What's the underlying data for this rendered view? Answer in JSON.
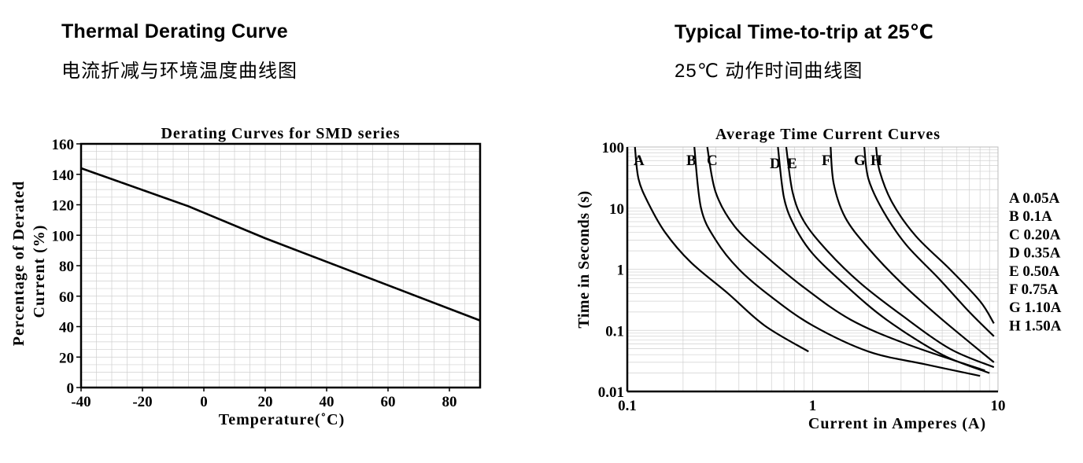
{
  "headers": {
    "left_title": "Thermal Derating Curve",
    "left_subtitle": "电流折减与环境温度曲线图",
    "right_title": "Typical Time-to-trip at 25℃",
    "right_subtitle": "25℃ 动作时间曲线图"
  },
  "chart_data": [
    {
      "type": "line",
      "title": "Derating Curves for SMD series",
      "xlabel": "Temperature(˚C)",
      "ylabel_line1": "Percentage of Derated",
      "ylabel_line2": "Current (%)",
      "xlim": [
        -40,
        90
      ],
      "ylim": [
        0,
        160
      ],
      "x_ticks": [
        -40,
        -20,
        0,
        20,
        40,
        60,
        80
      ],
      "y_ticks": [
        0,
        20,
        40,
        60,
        80,
        100,
        120,
        140,
        160
      ],
      "grid": true,
      "series": [
        {
          "x": [
            -40,
            -5,
            20,
            90
          ],
          "values": [
            144,
            119,
            98,
            44
          ]
        }
      ]
    },
    {
      "type": "line",
      "title": "Average Time Current Curves",
      "xlabel": "Current in Amperes (A)",
      "ylabel": "Time in Seconds (s)",
      "x_scale": "log",
      "y_scale": "log",
      "xlim": [
        0.1,
        10
      ],
      "ylim": [
        0.01,
        100
      ],
      "x_ticks": [
        "0.1",
        "1",
        "10"
      ],
      "y_ticks": [
        "0.01",
        "0.1",
        "1",
        "10",
        "100"
      ],
      "grid": true,
      "legend": [
        "A 0.05A",
        "B 0.1A",
        "C 0.20A",
        "D 0.35A",
        "E 0.50A",
        "F 0.75A",
        "G 1.10A",
        "H 1.50A"
      ],
      "series": [
        {
          "name": "A",
          "x": [
            0.11,
            0.115,
            0.13,
            0.16,
            0.22,
            0.35,
            0.55,
            0.95
          ],
          "values": [
            100,
            30,
            12,
            4,
            1.3,
            0.4,
            0.12,
            0.045
          ]
        },
        {
          "name": "B",
          "x": [
            0.23,
            0.25,
            0.3,
            0.4,
            0.6,
            1.0,
            2.0,
            4.0,
            8.0
          ],
          "values": [
            100,
            10,
            3,
            1,
            0.35,
            0.12,
            0.045,
            0.028,
            0.018
          ]
        },
        {
          "name": "C",
          "x": [
            0.27,
            0.3,
            0.38,
            0.55,
            0.9,
            1.6,
            3.2,
            8.5
          ],
          "values": [
            100,
            18,
            5,
            1.7,
            0.5,
            0.15,
            0.06,
            0.022
          ]
        },
        {
          "name": "D",
          "x": [
            0.65,
            0.7,
            0.8,
            1.0,
            1.5,
            2.5,
            5.0,
            9.0
          ],
          "values": [
            100,
            15,
            5,
            1.8,
            0.55,
            0.15,
            0.04,
            0.02
          ]
        },
        {
          "name": "E",
          "x": [
            0.72,
            0.78,
            0.9,
            1.2,
            1.8,
            3.0,
            5.5,
            9.5
          ],
          "values": [
            100,
            18,
            6,
            2,
            0.6,
            0.18,
            0.05,
            0.025
          ]
        },
        {
          "name": "F",
          "x": [
            1.25,
            1.3,
            1.5,
            2.0,
            3.0,
            5.0,
            9.5
          ],
          "values": [
            100,
            25,
            7,
            2.2,
            0.6,
            0.15,
            0.03
          ]
        },
        {
          "name": "G",
          "x": [
            1.9,
            2.0,
            2.4,
            3.2,
            4.8,
            7.0,
            9.5
          ],
          "values": [
            100,
            30,
            9,
            2.5,
            0.7,
            0.2,
            0.08
          ]
        },
        {
          "name": "H",
          "x": [
            2.2,
            2.3,
            2.7,
            3.6,
            5.5,
            8.0,
            9.5
          ],
          "values": [
            100,
            40,
            12,
            3.5,
            1.0,
            0.3,
            0.13
          ]
        }
      ],
      "curve_labels": [
        "A",
        "B",
        "C",
        "D",
        "E",
        "F",
        "G",
        "H"
      ]
    }
  ]
}
